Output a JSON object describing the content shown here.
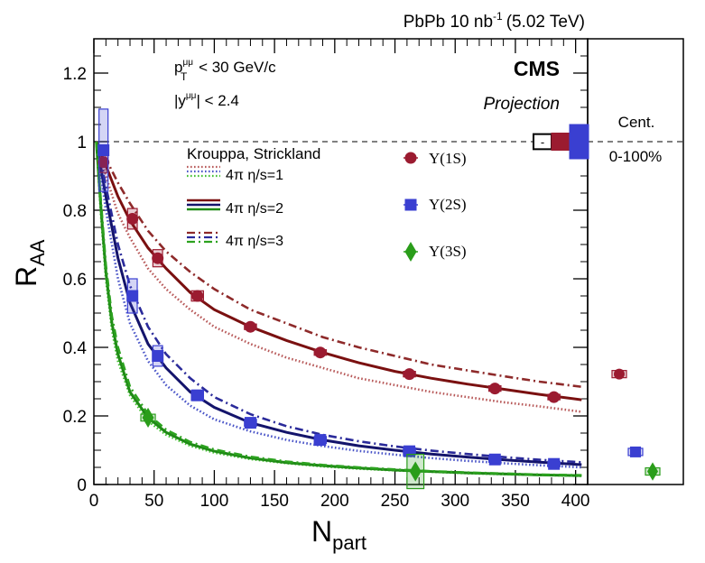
{
  "chart_data": {
    "type": "scatter",
    "header": {
      "label": "PbPb 10 nb",
      "superscript": "-1",
      "energy": "(5.02 TeV)"
    },
    "experiment": "CMS",
    "status": "Projection",
    "cuts": {
      "pt": {
        "symbol": "p",
        "sup": "μμ",
        "sub": "T",
        "rest": " < 30 GeV/c"
      },
      "y": {
        "open": "|y",
        "sup": "μμ",
        "rest": "| < 2.4"
      }
    },
    "xlabel": {
      "main": "N",
      "sub": "part"
    },
    "ylabel": {
      "main": "R",
      "sub": "AA"
    },
    "xlim": [
      0,
      410
    ],
    "ylim": [
      0,
      1.3
    ],
    "xticks": [
      0,
      50,
      100,
      150,
      200,
      250,
      300,
      350,
      400
    ],
    "yticks": [
      0,
      0.2,
      0.4,
      0.6,
      0.8,
      1,
      1.2
    ],
    "ytick_labels": [
      "0",
      "0.2",
      "0.4",
      "0.6",
      "0.8",
      "1",
      "1.2"
    ],
    "reference_line": 1.0,
    "model": {
      "title": "Krouppa, Strickland",
      "entries": [
        {
          "label": "4π  η/s=1",
          "style": "dotted",
          "eta_s": 1
        },
        {
          "label": "4π  η/s=2",
          "style": "solid",
          "eta_s": 2
        },
        {
          "label": "4π  η/s=3",
          "style": "dashdot",
          "eta_s": 3
        }
      ],
      "curves": [
        {
          "state": "1S",
          "style": "dotted",
          "x": [
            2,
            10,
            20,
            30,
            45,
            60,
            80,
            100,
            130,
            160,
            190,
            220,
            250,
            280,
            310,
            340,
            370,
            405
          ],
          "y": [
            1.0,
            0.9,
            0.79,
            0.72,
            0.63,
            0.57,
            0.51,
            0.46,
            0.41,
            0.37,
            0.34,
            0.31,
            0.29,
            0.27,
            0.255,
            0.24,
            0.228,
            0.212
          ]
        },
        {
          "state": "1S",
          "style": "solid",
          "x": [
            2,
            10,
            20,
            30,
            45,
            60,
            80,
            100,
            130,
            160,
            190,
            220,
            250,
            280,
            310,
            340,
            370,
            405
          ],
          "y": [
            1.0,
            0.93,
            0.84,
            0.77,
            0.69,
            0.63,
            0.56,
            0.51,
            0.46,
            0.42,
            0.385,
            0.355,
            0.33,
            0.31,
            0.293,
            0.278,
            0.263,
            0.247
          ]
        },
        {
          "state": "1S",
          "style": "dashdot",
          "x": [
            2,
            10,
            20,
            30,
            45,
            60,
            80,
            100,
            130,
            160,
            190,
            220,
            250,
            280,
            310,
            340,
            370,
            405
          ],
          "y": [
            1.0,
            0.95,
            0.88,
            0.82,
            0.74,
            0.68,
            0.62,
            0.57,
            0.51,
            0.47,
            0.43,
            0.4,
            0.375,
            0.35,
            0.333,
            0.316,
            0.3,
            0.285
          ]
        },
        {
          "state": "2S",
          "style": "dotted",
          "x": [
            2,
            10,
            20,
            30,
            45,
            60,
            80,
            100,
            130,
            160,
            190,
            220,
            250,
            280,
            310,
            340,
            370,
            405
          ],
          "y": [
            1.0,
            0.8,
            0.6,
            0.47,
            0.36,
            0.29,
            0.23,
            0.19,
            0.155,
            0.13,
            0.112,
            0.098,
            0.087,
            0.077,
            0.069,
            0.062,
            0.056,
            0.05
          ]
        },
        {
          "state": "2S",
          "style": "solid",
          "x": [
            2,
            10,
            20,
            30,
            45,
            60,
            80,
            100,
            130,
            160,
            190,
            220,
            250,
            280,
            310,
            340,
            370,
            405
          ],
          "y": [
            1.0,
            0.84,
            0.66,
            0.53,
            0.41,
            0.34,
            0.27,
            0.225,
            0.18,
            0.152,
            0.13,
            0.113,
            0.1,
            0.089,
            0.08,
            0.072,
            0.065,
            0.058
          ]
        },
        {
          "state": "2S",
          "style": "dashdot",
          "x": [
            2,
            10,
            20,
            30,
            45,
            60,
            80,
            100,
            130,
            160,
            190,
            220,
            250,
            280,
            310,
            340,
            370,
            405
          ],
          "y": [
            1.0,
            0.87,
            0.7,
            0.58,
            0.46,
            0.38,
            0.31,
            0.255,
            0.205,
            0.17,
            0.145,
            0.126,
            0.111,
            0.099,
            0.089,
            0.08,
            0.072,
            0.065
          ]
        },
        {
          "state": "3S",
          "style": "dotted",
          "x": [
            2,
            6,
            10,
            15,
            20,
            30,
            45,
            60,
            80,
            100,
            130,
            160,
            190,
            220,
            250,
            280,
            310,
            340,
            370,
            405
          ],
          "y": [
            1.0,
            0.78,
            0.6,
            0.45,
            0.36,
            0.26,
            0.185,
            0.145,
            0.113,
            0.093,
            0.074,
            0.062,
            0.053,
            0.046,
            0.041,
            0.037,
            0.033,
            0.03,
            0.028,
            0.025
          ]
        },
        {
          "state": "3S",
          "style": "solid",
          "x": [
            2,
            6,
            10,
            15,
            20,
            30,
            45,
            60,
            80,
            100,
            130,
            160,
            190,
            220,
            250,
            280,
            310,
            340,
            370,
            405
          ],
          "y": [
            1.0,
            0.8,
            0.62,
            0.47,
            0.38,
            0.27,
            0.195,
            0.152,
            0.118,
            0.097,
            0.077,
            0.064,
            0.055,
            0.048,
            0.042,
            0.038,
            0.034,
            0.031,
            0.028,
            0.026
          ]
        },
        {
          "state": "3S",
          "style": "dashdot",
          "x": [
            2,
            6,
            10,
            15,
            20,
            30,
            45,
            60,
            80,
            100,
            130,
            160,
            190,
            220,
            250,
            280,
            310,
            340,
            370,
            405
          ],
          "y": [
            1.0,
            0.82,
            0.64,
            0.49,
            0.4,
            0.285,
            0.205,
            0.16,
            0.124,
            0.102,
            0.081,
            0.067,
            0.057,
            0.05,
            0.044,
            0.039,
            0.035,
            0.032,
            0.029,
            0.027
          ]
        }
      ]
    },
    "series": [
      {
        "name": "Υ(1S)",
        "marker": "circle",
        "color": "#9b1b30",
        "points": [
          {
            "x": 8,
            "y": 0.94,
            "xerr": 3,
            "sys": 0.03
          },
          {
            "x": 32,
            "y": 0.775,
            "xerr": 4,
            "sys": 0.03
          },
          {
            "x": 53,
            "y": 0.66,
            "xerr": 4,
            "sys": 0.025
          },
          {
            "x": 86,
            "y": 0.55,
            "xerr": 5,
            "sys": 0.015
          },
          {
            "x": 130,
            "y": 0.46,
            "xerr": 5,
            "sys": 0.008
          },
          {
            "x": 188,
            "y": 0.385,
            "xerr": 5,
            "sys": 0.008
          },
          {
            "x": 262,
            "y": 0.322,
            "xerr": 5,
            "sys": 0.008
          },
          {
            "x": 333,
            "y": 0.28,
            "xerr": 5,
            "sys": 0.008
          },
          {
            "x": 382,
            "y": 0.255,
            "xerr": 5,
            "sys": 0.008
          }
        ]
      },
      {
        "name": "Υ(2S)",
        "marker": "square",
        "color": "#3a3fd1",
        "points": [
          {
            "x": 8,
            "y": 0.975,
            "xerr": 3,
            "sys": 0.12
          },
          {
            "x": 32,
            "y": 0.55,
            "xerr": 4,
            "sys": 0.05
          },
          {
            "x": 53,
            "y": 0.375,
            "xerr": 4,
            "sys": 0.03
          },
          {
            "x": 86,
            "y": 0.26,
            "xerr": 5,
            "sys": 0.015
          },
          {
            "x": 130,
            "y": 0.18,
            "xerr": 5,
            "sys": 0.01
          },
          {
            "x": 188,
            "y": 0.13,
            "xerr": 5,
            "sys": 0.01
          },
          {
            "x": 262,
            "y": 0.097,
            "xerr": 5,
            "sys": 0.01
          },
          {
            "x": 333,
            "y": 0.073,
            "xerr": 5,
            "sys": 0.008
          },
          {
            "x": 382,
            "y": 0.06,
            "xerr": 5,
            "sys": 0.008
          }
        ]
      },
      {
        "name": "Υ(3S)",
        "marker": "diamond",
        "color": "#2a9d1a",
        "points": [
          {
            "x": 45,
            "y": 0.195,
            "xerr": 6,
            "sys": 0.01
          },
          {
            "x": 267,
            "y": 0.038,
            "xerr": 7,
            "sys": 0.05
          }
        ]
      }
    ],
    "global_uncertainty": [
      {
        "label": "-",
        "color": "#000000",
        "half": 0.022
      },
      {
        "label": "",
        "color": "#9b1b30",
        "half": 0.025
      },
      {
        "label": "",
        "color": "#3a3fd1",
        "half": 0.05
      }
    ],
    "side_panel": {
      "title": "Cent.",
      "label": "0-100%",
      "points": [
        {
          "series": "Υ(1S)",
          "y": 0.322
        },
        {
          "series": "Υ(2S)",
          "y": 0.095
        },
        {
          "series": "Υ(3S)",
          "y": 0.038
        }
      ]
    }
  }
}
